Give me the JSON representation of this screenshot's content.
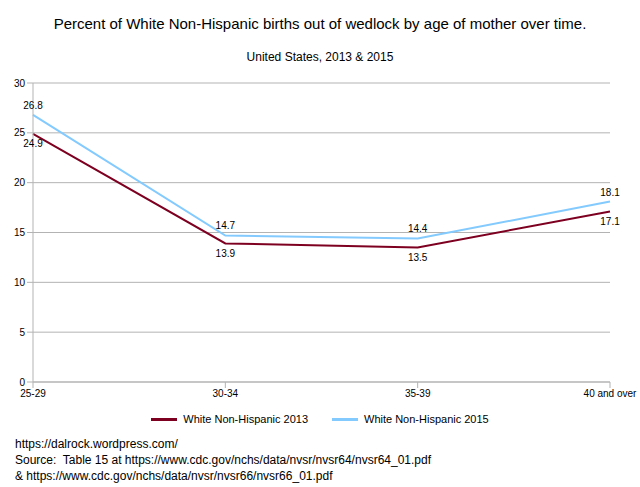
{
  "chart_data": {
    "type": "line",
    "title": "Percent of White Non-Hispanic births out of wedlock by age of mother over time.",
    "subtitle": "United States, 2013 & 2015",
    "categories": [
      "25-29",
      "30-34",
      "35-39",
      "40 and over"
    ],
    "series": [
      {
        "name": "White Non-Hispanic 2013",
        "color": "#7e0021",
        "values": [
          24.9,
          13.9,
          13.5,
          17.1
        ]
      },
      {
        "name": "White Non-Hispanic 2015",
        "color": "#83caff",
        "values": [
          26.8,
          14.7,
          14.4,
          18.1
        ]
      }
    ],
    "ylim": [
      0,
      30
    ],
    "yticks": [
      0,
      5,
      10,
      15,
      20,
      25,
      30
    ],
    "grid": true,
    "data_labels": true,
    "legend": "bottom",
    "annotations": [
      "https://dalrock.wordpress.com/",
      "Source:  Table 15 at https://www.cdc.gov/nchs/data/nvsr/nvsr64/nvsr64_01.pdf",
      "& https://www.cdc.gov/nchs/data/nvsr/nvsr66/nvsr66_01.pdf"
    ]
  }
}
